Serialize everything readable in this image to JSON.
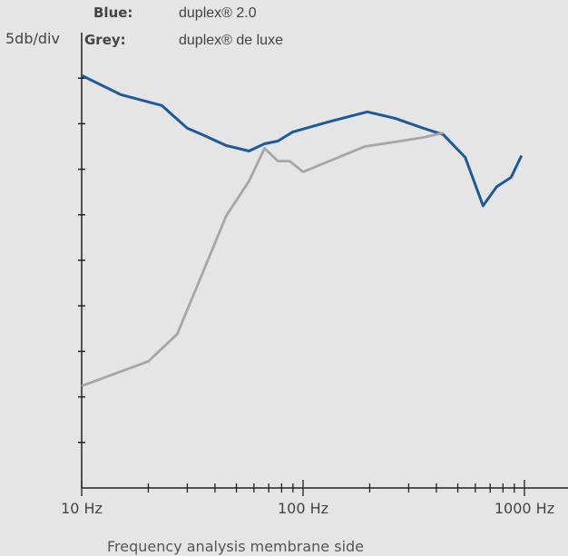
{
  "chart_data": {
    "type": "line",
    "ylabel": "5db/div",
    "xlabel": "",
    "caption": "Frequency analysis membrane side",
    "x_scale": "log",
    "xlim": [
      10,
      1000
    ],
    "x_tick_labels": [
      "10 Hz",
      "100 Hz",
      "1000 Hz"
    ],
    "x_label_values": [
      10,
      100,
      1000
    ],
    "y_divisions": 9,
    "ylim": [
      0,
      45
    ],
    "legend": [
      {
        "key": "Blue:",
        "value": "duplex® 2.0"
      },
      {
        "key": "Grey:",
        "value": "duplex® de luxe"
      }
    ],
    "series": [
      {
        "name": "duplex® 2.0",
        "color": "#1d5a99",
        "x": [
          10,
          15,
          23,
          30,
          35,
          45,
          57,
          67,
          77,
          90,
          130,
          195,
          260,
          350,
          430,
          540,
          650,
          750,
          870,
          970
        ],
        "y": [
          45.3,
          43.2,
          42.0,
          39.5,
          38.8,
          37.6,
          37.0,
          37.8,
          38.1,
          39.1,
          40.2,
          41.3,
          40.6,
          39.5,
          38.8,
          36.3,
          31.0,
          33.1,
          34.1,
          36.5
        ]
      },
      {
        "name": "duplex® de luxe",
        "color": "#a6a6a6",
        "x": [
          10,
          20,
          27,
          35,
          45,
          57,
          67,
          77,
          87,
          100,
          190,
          260,
          350,
          430
        ],
        "y": [
          11.2,
          13.9,
          16.9,
          23.5,
          29.9,
          33.7,
          37.3,
          35.9,
          35.9,
          34.7,
          37.5,
          38.0,
          38.5,
          39.0
        ]
      }
    ]
  }
}
